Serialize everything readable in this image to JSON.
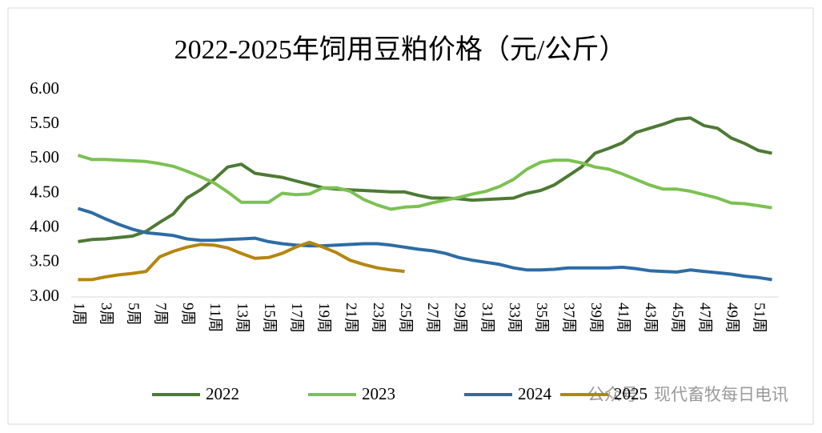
{
  "chart_data": {
    "type": "line",
    "title": "2022-2025年饲用豆粕价格（元/公斤）",
    "categories": [
      "1周",
      null,
      "3周",
      null,
      "5周",
      null,
      "7周",
      null,
      "9周",
      null,
      "11周",
      null,
      "13周",
      null,
      "15周",
      null,
      "17周",
      null,
      "19周",
      null,
      "21周",
      null,
      "23周",
      null,
      "25周",
      null,
      "27周",
      null,
      "29周",
      null,
      "31周",
      null,
      "33周",
      null,
      "35周",
      null,
      "37周",
      null,
      "39周",
      null,
      "41周",
      null,
      "43周",
      null,
      "45周",
      null,
      "47周",
      null,
      "49周",
      null,
      "51周",
      null
    ],
    "series": [
      {
        "name": "2022",
        "color": "#4d7a33",
        "values": [
          3.8,
          3.83,
          3.84,
          3.86,
          3.88,
          3.95,
          4.08,
          4.2,
          4.43,
          4.55,
          4.7,
          4.88,
          4.92,
          4.79,
          4.76,
          4.73,
          4.68,
          4.63,
          4.58,
          4.56,
          4.55,
          4.54,
          4.53,
          4.52,
          4.52,
          4.47,
          4.43,
          4.43,
          4.42,
          4.4,
          4.41,
          4.42,
          4.43,
          4.5,
          4.54,
          4.62,
          4.75,
          4.88,
          5.08,
          5.15,
          5.23,
          5.38,
          5.44,
          5.5,
          5.57,
          5.59,
          5.48,
          5.44,
          5.3,
          5.22,
          5.12,
          5.08
        ]
      },
      {
        "name": "2023",
        "color": "#7cc152",
        "values": [
          5.05,
          4.99,
          4.99,
          4.98,
          4.97,
          4.96,
          4.93,
          4.89,
          4.82,
          4.74,
          4.65,
          4.52,
          4.37,
          4.37,
          4.37,
          4.5,
          4.48,
          4.49,
          4.58,
          4.58,
          4.53,
          4.41,
          4.33,
          4.27,
          4.3,
          4.31,
          4.36,
          4.4,
          4.44,
          4.49,
          4.53,
          4.6,
          4.7,
          4.85,
          4.95,
          4.98,
          4.98,
          4.94,
          4.88,
          4.85,
          4.78,
          4.7,
          4.62,
          4.56,
          4.56,
          4.53,
          4.48,
          4.43,
          4.36,
          4.35,
          4.32,
          4.29
        ]
      },
      {
        "name": "2024",
        "color": "#2e6ca4",
        "values": [
          4.28,
          4.22,
          4.13,
          4.05,
          3.98,
          3.93,
          3.91,
          3.89,
          3.84,
          3.82,
          3.82,
          3.83,
          3.84,
          3.85,
          3.8,
          3.77,
          3.75,
          3.74,
          3.74,
          3.75,
          3.76,
          3.77,
          3.77,
          3.75,
          3.72,
          3.69,
          3.67,
          3.63,
          3.57,
          3.53,
          3.5,
          3.47,
          3.42,
          3.39,
          3.39,
          3.4,
          3.42,
          3.42,
          3.42,
          3.42,
          3.43,
          3.41,
          3.38,
          3.37,
          3.36,
          3.39,
          3.37,
          3.35,
          3.33,
          3.3,
          3.28,
          3.25
        ]
      },
      {
        "name": "2025",
        "color": "#b5860f",
        "values": [
          3.25,
          3.25,
          3.29,
          3.32,
          3.34,
          3.37,
          3.58,
          3.66,
          3.72,
          3.76,
          3.75,
          3.71,
          3.63,
          3.56,
          3.57,
          3.63,
          3.72,
          3.79,
          3.72,
          3.64,
          3.53,
          3.47,
          3.42,
          3.39,
          3.37,
          null,
          null,
          null,
          null,
          null,
          null,
          null,
          null,
          null,
          null,
          null,
          null,
          null,
          null,
          null,
          null,
          null,
          null,
          null,
          null,
          null,
          null,
          null,
          null,
          null,
          null,
          null
        ]
      }
    ],
    "ylim": [
      3,
      6
    ],
    "yticks": [
      {
        "value": 3,
        "label": "3.00"
      },
      {
        "value": 3.5,
        "label": "3.50"
      },
      {
        "value": 4,
        "label": "4.00"
      },
      {
        "value": 4.5,
        "label": "4.50"
      },
      {
        "value": 5,
        "label": "5.00"
      },
      {
        "value": 5.5,
        "label": "5.50"
      },
      {
        "value": 6,
        "label": "6.00"
      }
    ],
    "grid": false,
    "legend": "bottom",
    "watermark": "公众号 · 现代畜牧每日电讯"
  }
}
